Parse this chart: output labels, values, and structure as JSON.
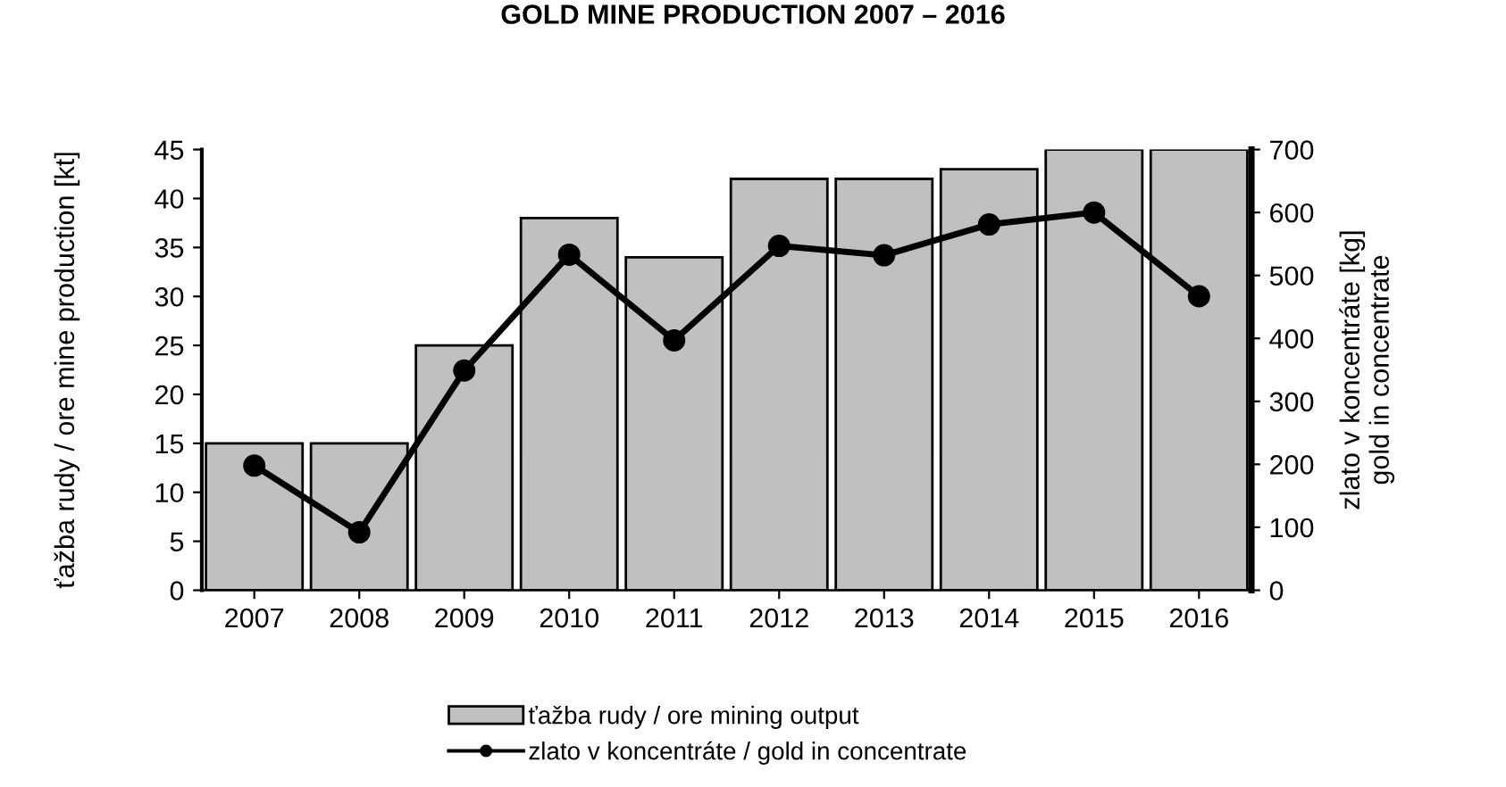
{
  "chart_data": {
    "type": "bar",
    "title": "GOLD MINE PRODUCTION 2007 – 2016",
    "categories": [
      "2007",
      "2008",
      "2009",
      "2010",
      "2011",
      "2012",
      "2013",
      "2014",
      "2015",
      "2016"
    ],
    "series": [
      {
        "name": "ťažba rudy / ore mining output",
        "color": "#c0c0c0",
        "values": [
          15,
          15,
          25,
          38,
          34,
          42,
          42,
          43,
          45,
          45
        ]
      },
      {
        "name": "zlato v koncentráte / gold in concentrate",
        "type": "line",
        "axis": "y2",
        "color": "#000000",
        "marker": "circle",
        "values": [
          198,
          92,
          349,
          533,
          397,
          547,
          532,
          581,
          600,
          467
        ]
      }
    ],
    "ylabel": "ťažba rudy / ore mine production [kt]",
    "y2label": "zlato v koncentráte [kg]\ngold in concentrate",
    "ylim": [
      0,
      45
    ],
    "yticks": [
      0,
      5,
      10,
      15,
      20,
      25,
      30,
      35,
      40,
      45
    ],
    "y2lim": [
      0,
      700
    ],
    "y2ticks": [
      0,
      100,
      200,
      300,
      400,
      500,
      600,
      700
    ],
    "legend": "bottom",
    "grid": false
  }
}
